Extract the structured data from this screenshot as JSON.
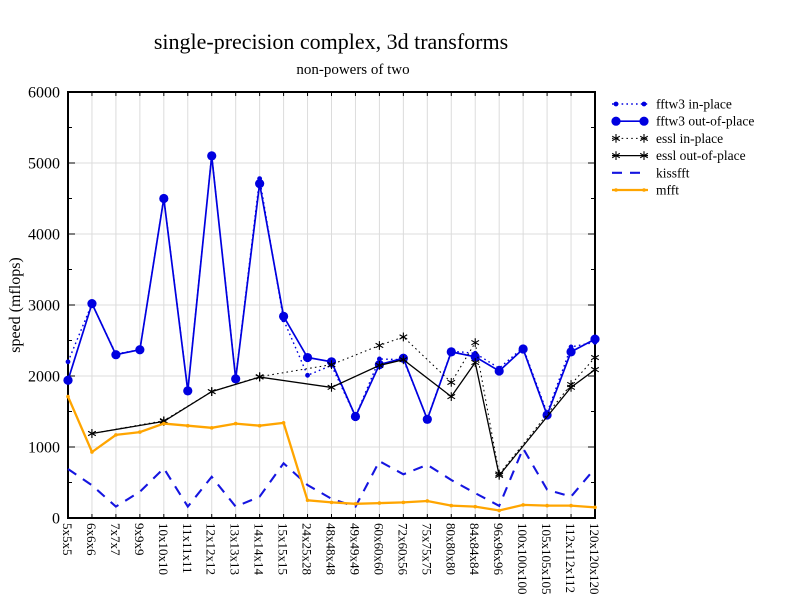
{
  "chart_data": {
    "type": "line",
    "title": "single-precision complex, 3d transforms",
    "subtitle": "non-powers of two",
    "xlabel": "",
    "ylabel": "speed (mflops)",
    "ylim": [
      0,
      6000
    ],
    "yticks": [
      0,
      1000,
      2000,
      3000,
      4000,
      5000,
      6000
    ],
    "y_minor_tick_interval": 500,
    "grid": true,
    "legend_position": "right",
    "categories": [
      "5x5x5",
      "6x6x6",
      "7x7x7",
      "9x9x9",
      "10x10x10",
      "11x11x11",
      "12x12x12",
      "13x13x13",
      "14x14x14",
      "15x15x15",
      "24x25x28",
      "48x48x48",
      "49x49x49",
      "60x60x60",
      "72x60x56",
      "75x75x75",
      "80x80x80",
      "84x84x84",
      "96x96x96",
      "100x100x100",
      "105x105x105",
      "112x112x112",
      "120x120x120"
    ],
    "series": [
      {
        "name": "fftw3 in-place",
        "color": "#0000e0",
        "line": "dotted",
        "marker": "dot-small",
        "values": [
          2200,
          3020,
          2310,
          2370,
          4510,
          1800,
          5110,
          1970,
          4780,
          2790,
          2010,
          2150,
          1430,
          2240,
          2230,
          1400,
          2350,
          2320,
          2110,
          2400,
          1480,
          2410,
          2475
        ]
      },
      {
        "name": "fftw3 out-of-place",
        "color": "#0000e0",
        "line": "solid",
        "marker": "dot-large",
        "values": [
          1940,
          3020,
          2300,
          2370,
          4500,
          1790,
          5100,
          1960,
          4710,
          2840,
          2260,
          2200,
          1430,
          2160,
          2250,
          1390,
          2340,
          2270,
          2070,
          2380,
          1450,
          2340,
          2520
        ]
      },
      {
        "name": "essl in-place",
        "color": "#000000",
        "line": "dotted",
        "marker": "asterisk",
        "values": [
          null,
          1190,
          null,
          null,
          1370,
          null,
          1780,
          null,
          1990,
          null,
          null,
          2160,
          null,
          2430,
          2550,
          null,
          1910,
          2470,
          620,
          null,
          null,
          1880,
          2260
        ]
      },
      {
        "name": "essl out-of-place",
        "color": "#000000",
        "line": "solid",
        "marker": "asterisk",
        "values": [
          null,
          1190,
          null,
          null,
          1360,
          null,
          1780,
          null,
          1985,
          null,
          null,
          1840,
          null,
          2150,
          2230,
          null,
          1710,
          2190,
          600,
          null,
          null,
          1840,
          2090
        ]
      },
      {
        "name": "kissfft",
        "color": "#1515e0",
        "line": "dashed",
        "marker": "none",
        "values": [
          690,
          460,
          160,
          370,
          700,
          160,
          580,
          160,
          300,
          770,
          465,
          270,
          160,
          800,
          615,
          750,
          535,
          350,
          170,
          980,
          400,
          300,
          700
        ]
      },
      {
        "name": "mfft",
        "color": "#ffa500",
        "line": "solid",
        "marker": "dot-tiny",
        "values": [
          1710,
          930,
          1170,
          1210,
          1330,
          1300,
          1270,
          1330,
          1300,
          1340,
          250,
          220,
          200,
          210,
          220,
          240,
          175,
          160,
          105,
          185,
          175,
          175,
          150
        ]
      }
    ],
    "grid_color": "#dcdcdc",
    "frame_color": "#000000"
  }
}
